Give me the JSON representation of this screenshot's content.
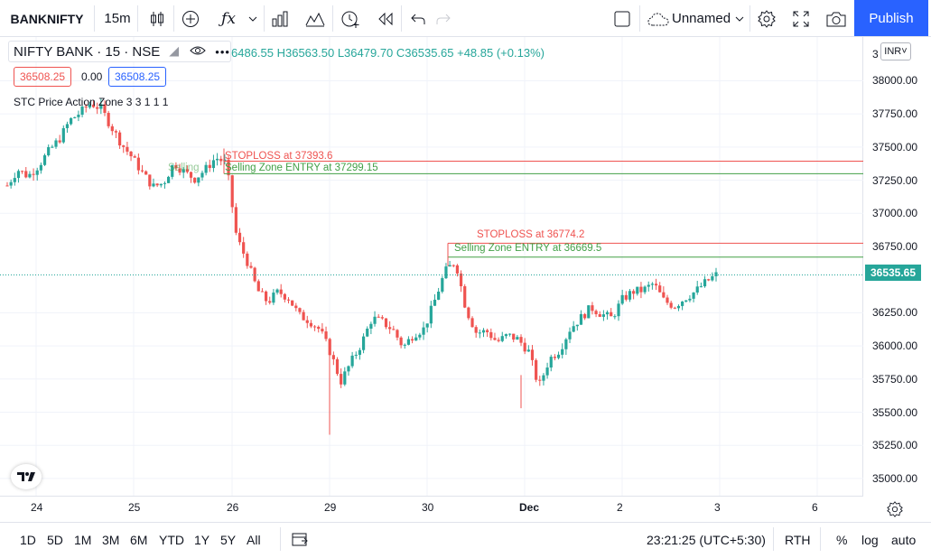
{
  "toolbar": {
    "symbol": "BANKNIFTY",
    "interval": "15m",
    "layout_name": "Unnamed",
    "publish_label": "Publish",
    "icons": [
      "candles-icon",
      "add-indicator-icon",
      "fx-icon",
      "bar-chart-icon",
      "alert-icon",
      "replay-icon",
      "undo-icon",
      "redo-icon"
    ]
  },
  "legend": {
    "title": "NIFTY BANK · 15 · NSE",
    "ohlc": "6486.55  H36563.50  L36479.70  C36535.65  +48.85 (+0.13%)",
    "bid": "36508.25",
    "spread": "0.00",
    "ask": "36508.25",
    "indicator": "STC Price Action Zone  3 3 1 1 1"
  },
  "annotations": {
    "stoploss1": "STOPLOSS at 37393.6",
    "entry1": "Selling Zone ENTRY at 37299.15",
    "entry1_prefix": "Selling",
    "stoploss2": "STOPLOSS at 36774.2",
    "entry2": "Selling Zone ENTRY at 36669.5"
  },
  "price_axis": {
    "currency": "INR",
    "ticks": [
      "38000.00",
      "37750.00",
      "37500.00",
      "37250.00",
      "37000.00",
      "36750.00",
      "36250.00",
      "36000.00",
      "35750.00",
      "35500.00",
      "35250.00",
      "35000.00"
    ],
    "top_partial": "3",
    "last_price": "36535.65"
  },
  "time_axis": {
    "ticks": [
      "24",
      "25",
      "26",
      "29",
      "30",
      "Dec",
      "2",
      "3",
      "6"
    ]
  },
  "bottom": {
    "ranges": [
      "1D",
      "5D",
      "1M",
      "3M",
      "6M",
      "YTD",
      "1Y",
      "5Y",
      "All"
    ],
    "clock": "23:21:25 (UTC+5:30)",
    "session": "RTH",
    "percent": "%",
    "log": "log",
    "auto": "auto"
  },
  "colors": {
    "up": "#26a69a",
    "down": "#ef5350",
    "stoploss_line": "#ef5350",
    "entry_line": "#43a047",
    "accent": "#2962ff"
  },
  "chart_data": {
    "type": "candlestick",
    "title": "NIFTY BANK · 15 · NSE",
    "ylim": [
      34870,
      38330
    ],
    "levels": [
      {
        "label": "STOPLOSS at 37393.6",
        "value": 37393.6
      },
      {
        "label": "Selling Zone ENTRY at 37299.15",
        "value": 37299.15
      },
      {
        "label": "STOPLOSS at 36774.2",
        "value": 36774.2
      },
      {
        "label": "Selling Zone ENTRY at 36669.5",
        "value": 36669.5
      }
    ],
    "close_path": [
      37210,
      37330,
      37280,
      37360,
      37470,
      37560,
      37700,
      37760,
      37830,
      37790,
      37650,
      37520,
      37420,
      37300,
      37200,
      37230,
      37380,
      37310,
      37260,
      37330,
      37420,
      37380,
      36820,
      36640,
      36420,
      36330,
      36410,
      36360,
      36230,
      36190,
      36120,
      35950,
      35730,
      35880,
      36020,
      36210,
      36180,
      36120,
      35990,
      36090,
      36130,
      36340,
      36560,
      36640,
      36280,
      36100,
      36110,
      36030,
      36080,
      36050,
      35960,
      35690,
      35900,
      35970,
      36130,
      36210,
      36290,
      36240,
      36210,
      36350,
      36410,
      36420,
      36470,
      36340,
      36300,
      36360,
      36410,
      36480,
      36535.65
    ]
  }
}
